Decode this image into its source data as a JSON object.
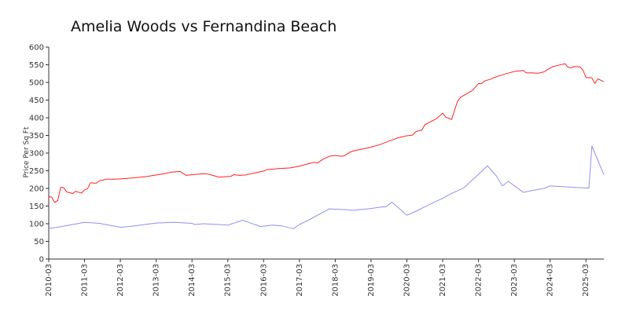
{
  "chart_data": {
    "type": "line",
    "title": "Amelia Woods vs Fernandina Beach",
    "xlabel": "",
    "ylabel": "Price Per Sq Ft",
    "ylim": [
      0,
      600
    ],
    "xlim": [
      "2010-03",
      "2025-09"
    ],
    "grid": false,
    "legend": "none",
    "y_ticks": [
      0,
      50,
      100,
      150,
      200,
      250,
      300,
      350,
      400,
      450,
      500,
      550,
      600
    ],
    "x_ticks": [
      "2010-03",
      "2011-03",
      "2012-03",
      "2013-03",
      "2014-03",
      "2015-03",
      "2016-03",
      "2017-03",
      "2018-03",
      "2019-03",
      "2020-03",
      "2021-03",
      "2022-03",
      "2023-03",
      "2024-03",
      "2025-03"
    ],
    "series": [
      {
        "color": "#ff2020",
        "points": [
          [
            "2010-03",
            177
          ],
          [
            "2010-04",
            175
          ],
          [
            "2010-05",
            160
          ],
          [
            "2010-06",
            166
          ],
          [
            "2010-07",
            203
          ],
          [
            "2010-08",
            202
          ],
          [
            "2010-09",
            190
          ],
          [
            "2010-10",
            188
          ],
          [
            "2010-11",
            185
          ],
          [
            "2010-12",
            192
          ],
          [
            "2011-01",
            189
          ],
          [
            "2011-02",
            187
          ],
          [
            "2011-03",
            196
          ],
          [
            "2011-04",
            199
          ],
          [
            "2011-05",
            216
          ],
          [
            "2011-06",
            215
          ],
          [
            "2011-07",
            215
          ],
          [
            "2011-08",
            222
          ],
          [
            "2011-09",
            223
          ],
          [
            "2011-10",
            226
          ],
          [
            "2011-11",
            226
          ],
          [
            "2012-01",
            226
          ],
          [
            "2012-03",
            227
          ],
          [
            "2012-06",
            229
          ],
          [
            "2012-09",
            231
          ],
          [
            "2012-12",
            234
          ],
          [
            "2013-03",
            238
          ],
          [
            "2013-06",
            242
          ],
          [
            "2013-08",
            246
          ],
          [
            "2013-11",
            248
          ],
          [
            "2014-01",
            237
          ],
          [
            "2014-03",
            239
          ],
          [
            "2014-06",
            241
          ],
          [
            "2014-08",
            241
          ],
          [
            "2014-10",
            237
          ],
          [
            "2014-12",
            232
          ],
          [
            "2015-02",
            233
          ],
          [
            "2015-04",
            234
          ],
          [
            "2015-05",
            239
          ],
          [
            "2015-07",
            237
          ],
          [
            "2015-09",
            238
          ],
          [
            "2015-12",
            244
          ],
          [
            "2016-03",
            249
          ],
          [
            "2016-04",
            253
          ],
          [
            "2016-08",
            256
          ],
          [
            "2016-12",
            258
          ],
          [
            "2017-03",
            263
          ],
          [
            "2017-06",
            270
          ],
          [
            "2017-08",
            274
          ],
          [
            "2017-09",
            272
          ],
          [
            "2017-11",
            283
          ],
          [
            "2018-01",
            291
          ],
          [
            "2018-03",
            293
          ],
          [
            "2018-05",
            291
          ],
          [
            "2018-06",
            292
          ],
          [
            "2018-08",
            303
          ],
          [
            "2018-10",
            308
          ],
          [
            "2019-01",
            313
          ],
          [
            "2019-03",
            317
          ],
          [
            "2019-06",
            324
          ],
          [
            "2019-09",
            334
          ],
          [
            "2019-12",
            343
          ],
          [
            "2020-03",
            349
          ],
          [
            "2020-05",
            351
          ],
          [
            "2020-06",
            361
          ],
          [
            "2020-08",
            365
          ],
          [
            "2020-09",
            380
          ],
          [
            "2020-11",
            389
          ],
          [
            "2021-01",
            398
          ],
          [
            "2021-03",
            413
          ],
          [
            "2021-04",
            402
          ],
          [
            "2021-06",
            395
          ],
          [
            "2021-07",
            422
          ],
          [
            "2021-08",
            447
          ],
          [
            "2021-09",
            458
          ],
          [
            "2021-11",
            468
          ],
          [
            "2022-01",
            477
          ],
          [
            "2022-03",
            497
          ],
          [
            "2022-04",
            496
          ],
          [
            "2022-05",
            504
          ],
          [
            "2022-07",
            509
          ],
          [
            "2022-08",
            513
          ],
          [
            "2022-10",
            519
          ],
          [
            "2022-12",
            524
          ],
          [
            "2023-03",
            531
          ],
          [
            "2023-06",
            534
          ],
          [
            "2023-07",
            527
          ],
          [
            "2023-09",
            527
          ],
          [
            "2023-11",
            526
          ],
          [
            "2024-01",
            530
          ],
          [
            "2024-03",
            541
          ],
          [
            "2024-04",
            545
          ],
          [
            "2024-06",
            549
          ],
          [
            "2024-08",
            553
          ],
          [
            "2024-09",
            543
          ],
          [
            "2024-10",
            541
          ],
          [
            "2024-11",
            545
          ],
          [
            "2025-01",
            544
          ],
          [
            "2025-02",
            535
          ],
          [
            "2025-03",
            514
          ],
          [
            "2025-05",
            513
          ],
          [
            "2025-06",
            497
          ],
          [
            "2025-07",
            510
          ],
          [
            "2025-09",
            502
          ]
        ]
      },
      {
        "color": "#9090f0",
        "points": [
          [
            "2010-03",
            87
          ],
          [
            "2010-06",
            90
          ],
          [
            "2011-03",
            104
          ],
          [
            "2011-08",
            101
          ],
          [
            "2012-03",
            90
          ],
          [
            "2012-06",
            92
          ],
          [
            "2013-03",
            102
          ],
          [
            "2013-09",
            104
          ],
          [
            "2014-03",
            101
          ],
          [
            "2014-04",
            98
          ],
          [
            "2014-07",
            100
          ],
          [
            "2015-03",
            96
          ],
          [
            "2015-08",
            110
          ],
          [
            "2015-11",
            101
          ],
          [
            "2016-02",
            92
          ],
          [
            "2016-06",
            96
          ],
          [
            "2016-09",
            94
          ],
          [
            "2017-01",
            86
          ],
          [
            "2017-03",
            98
          ],
          [
            "2017-06",
            110
          ],
          [
            "2018-01",
            142
          ],
          [
            "2018-06",
            140
          ],
          [
            "2018-09",
            138
          ],
          [
            "2019-03",
            143
          ],
          [
            "2019-06",
            147
          ],
          [
            "2019-08",
            148
          ],
          [
            "2019-10",
            161
          ],
          [
            "2020-03",
            124
          ],
          [
            "2020-06",
            135
          ],
          [
            "2020-09",
            148
          ],
          [
            "2021-03",
            172
          ],
          [
            "2021-06",
            186
          ],
          [
            "2021-10",
            201
          ],
          [
            "2022-03",
            240
          ],
          [
            "2022-06",
            264
          ],
          [
            "2022-09",
            235
          ],
          [
            "2022-11",
            207
          ],
          [
            "2023-01",
            220
          ],
          [
            "2023-06",
            189
          ],
          [
            "2023-09",
            194
          ],
          [
            "2024-01",
            200
          ],
          [
            "2024-03",
            207
          ],
          [
            "2025-03",
            201
          ],
          [
            "2025-04",
            201
          ],
          [
            "2025-05",
            320
          ],
          [
            "2025-09",
            239
          ]
        ]
      }
    ]
  }
}
